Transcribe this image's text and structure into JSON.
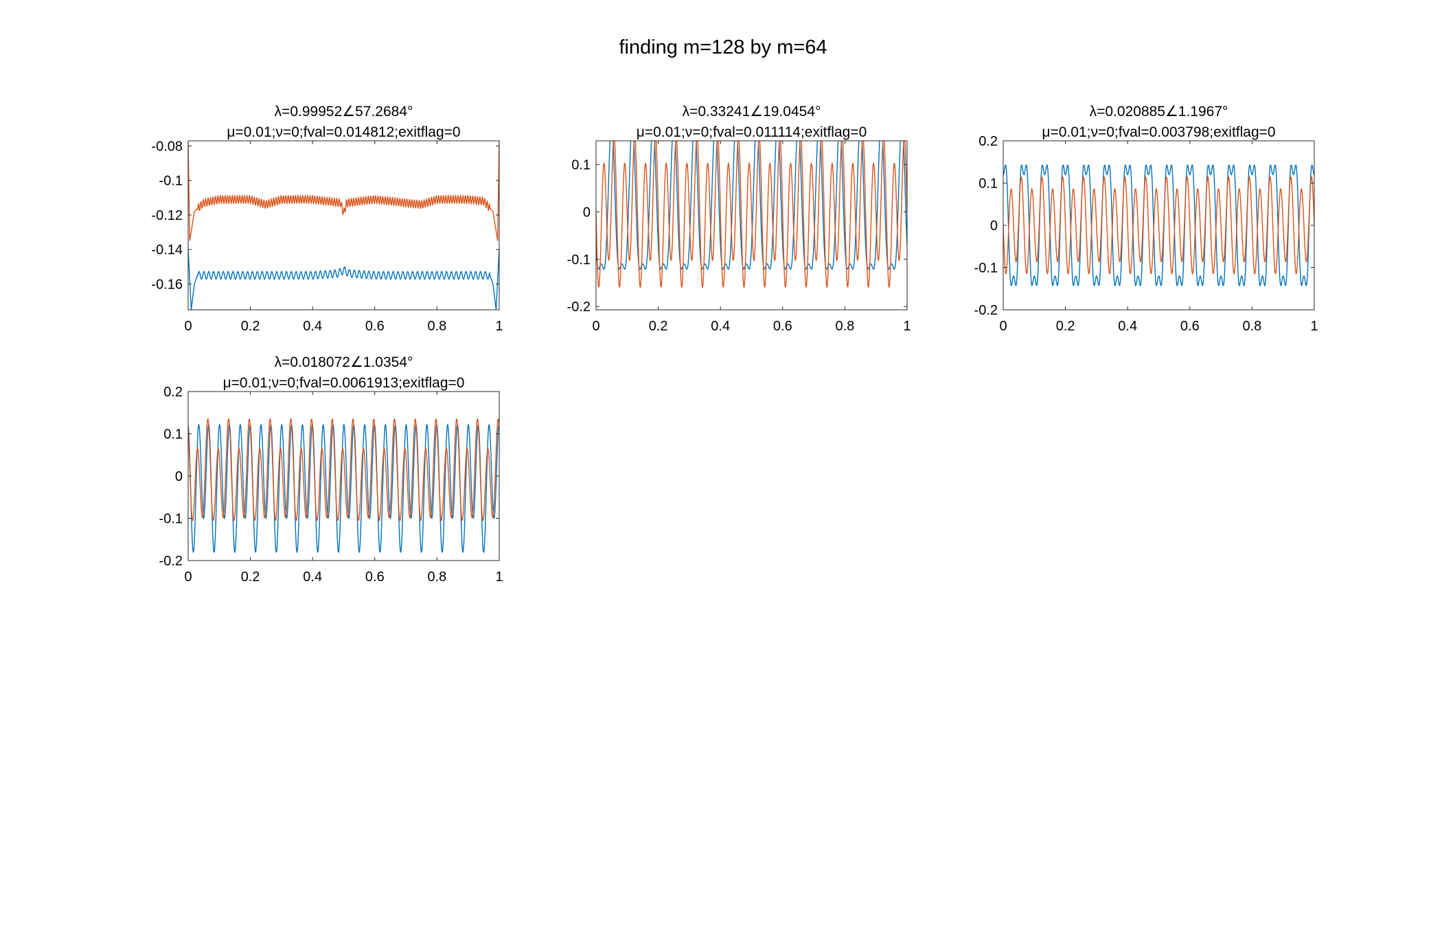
{
  "figure": {
    "title": "finding m=128 by m=64"
  },
  "colors": {
    "series1": "#0072BD",
    "series2": "#D95319",
    "axes": "#262626",
    "background": "#ffffff"
  },
  "chart_data": [
    {
      "type": "line",
      "title": [
        "λ=0.99952∠57.2684°",
        "μ=0.01;ν=0;fval=0.014812;exitflag=0"
      ],
      "xlim": [
        0,
        1
      ],
      "ylim": [
        -0.175,
        -0.077
      ],
      "xticks": [
        0,
        0.2,
        0.4,
        0.6,
        0.8,
        1
      ],
      "xtick_labels": [
        "0",
        "0.2",
        "0.4",
        "0.6",
        "0.8",
        "1"
      ],
      "yticks": [
        -0.16,
        -0.14,
        -0.12,
        -0.1,
        -0.08
      ],
      "ytick_labels": [
        "-0.16",
        "-0.14",
        "-0.12",
        "-0.1",
        "-0.08"
      ],
      "grid": false,
      "legend": "none",
      "series": [
        {
          "color": "#0072BD",
          "x": [
            0,
            0.01,
            0.02,
            0.03,
            0.05,
            0.1,
            0.2,
            0.3,
            0.4,
            0.48,
            0.5,
            0.52,
            0.6,
            0.7,
            0.8,
            0.9,
            0.95,
            0.97,
            0.98,
            0.99,
            1
          ],
          "y": [
            -0.14,
            -0.175,
            -0.16,
            -0.155,
            -0.155,
            -0.155,
            -0.155,
            -0.155,
            -0.155,
            -0.154,
            -0.152,
            -0.154,
            -0.155,
            -0.155,
            -0.155,
            -0.155,
            -0.155,
            -0.155,
            -0.16,
            -0.175,
            -0.14
          ],
          "ripple": 0.0022,
          "ripple_period": 0.0156
        },
        {
          "color": "#D95319",
          "x": [
            0,
            0.005,
            0.02,
            0.05,
            0.1,
            0.2,
            0.25,
            0.3,
            0.4,
            0.49,
            0.5,
            0.51,
            0.6,
            0.75,
            0.8,
            0.9,
            0.95,
            0.98,
            0.995,
            1
          ],
          "y": [
            -0.078,
            -0.135,
            -0.118,
            -0.113,
            -0.111,
            -0.111,
            -0.114,
            -0.111,
            -0.111,
            -0.113,
            -0.119,
            -0.113,
            -0.111,
            -0.114,
            -0.111,
            -0.111,
            -0.112,
            -0.118,
            -0.135,
            -0.078
          ],
          "ripple": 0.0022,
          "ripple_period": 0.0078
        }
      ]
    },
    {
      "type": "line",
      "title": [
        "λ=0.33241∠19.0454°",
        "μ=0.01;ν=0;fval=0.011114;exitflag=0"
      ],
      "xlim": [
        0,
        1
      ],
      "ylim": [
        -0.207,
        0.15
      ],
      "xticks": [
        0,
        0.2,
        0.4,
        0.6,
        0.8,
        1
      ],
      "xtick_labels": [
        "0",
        "0.2",
        "0.4",
        "0.6",
        "0.8",
        "1"
      ],
      "yticks": [
        -0.2,
        -0.1,
        0,
        0.1
      ],
      "ytick_labels": [
        "-0.2",
        "-0.1",
        "0",
        "0.1"
      ],
      "grid": false,
      "legend": "none",
      "series": [
        {
          "color": "#0072BD",
          "harmonics": [
            {
              "a": 0.15,
              "f": 15,
              "p": 1.571
            },
            {
              "a": -0.055,
              "f": 30,
              "p": 0
            }
          ],
          "offset": -0.015
        },
        {
          "color": "#D95319",
          "harmonics": [
            {
              "a": 0.13,
              "f": 30,
              "p": 1.571
            },
            {
              "a": 0.04,
              "f": 15,
              "p": 1.571
            }
          ],
          "offset": 0.0
        }
      ]
    },
    {
      "type": "line",
      "title": [
        "λ=0.020885∠1.1967°",
        "μ=0.01;ν=0;fval=0.003798;exitflag=0"
      ],
      "xlim": [
        0,
        1
      ],
      "ylim": [
        -0.2,
        0.2
      ],
      "xticks": [
        0,
        0.2,
        0.4,
        0.6,
        0.8,
        1
      ],
      "xtick_labels": [
        "0",
        "0.2",
        "0.4",
        "0.6",
        "0.8",
        "1"
      ],
      "yticks": [
        -0.2,
        -0.1,
        0,
        0.1,
        0.2
      ],
      "ytick_labels": [
        "-0.2",
        "-0.1",
        "0",
        "0.1",
        "0.2"
      ],
      "grid": false,
      "legend": "none",
      "series": [
        {
          "color": "#0072BD",
          "harmonics": [
            {
              "a": 0.16,
              "f": 15,
              "p": 0
            },
            {
              "a": -0.04,
              "f": 45,
              "p": 0
            }
          ],
          "offset": 0.0
        },
        {
          "color": "#D95319",
          "harmonics": [
            {
              "a": 0.1,
              "f": 30,
              "p": 1.571
            },
            {
              "a": 0.02,
              "f": 15,
              "p": 1.571
            }
          ],
          "offset": 0.0
        }
      ]
    },
    {
      "type": "line",
      "title": [
        "λ=0.018072∠1.0354°",
        "μ=0.01;ν=0;fval=0.0061913;exitflag=0"
      ],
      "xlim": [
        0,
        1
      ],
      "ylim": [
        -0.2,
        0.2
      ],
      "xticks": [
        0,
        0.2,
        0.4,
        0.6,
        0.8,
        1
      ],
      "xtick_labels": [
        "0",
        "0.2",
        "0.4",
        "0.6",
        "0.8",
        "1"
      ],
      "yticks": [
        -0.2,
        -0.1,
        0,
        0.1,
        0.2
      ],
      "ytick_labels": [
        "-0.2",
        "-0.1",
        "0",
        "0.1",
        "0.2"
      ],
      "grid": false,
      "legend": "none",
      "series": [
        {
          "color": "#0072BD",
          "harmonics": [
            {
              "a": 0.13,
              "f": 30,
              "p": 0
            },
            {
              "a": 0.04,
              "f": 15,
              "p": 1.571
            }
          ],
          "offset": -0.01
        },
        {
          "color": "#D95319",
          "harmonics": [
            {
              "a": 0.1,
              "f": 30,
              "p": 0.6
            },
            {
              "a": 0.035,
              "f": 15,
              "p": 0.4
            }
          ],
          "offset": 0.0
        }
      ]
    }
  ]
}
